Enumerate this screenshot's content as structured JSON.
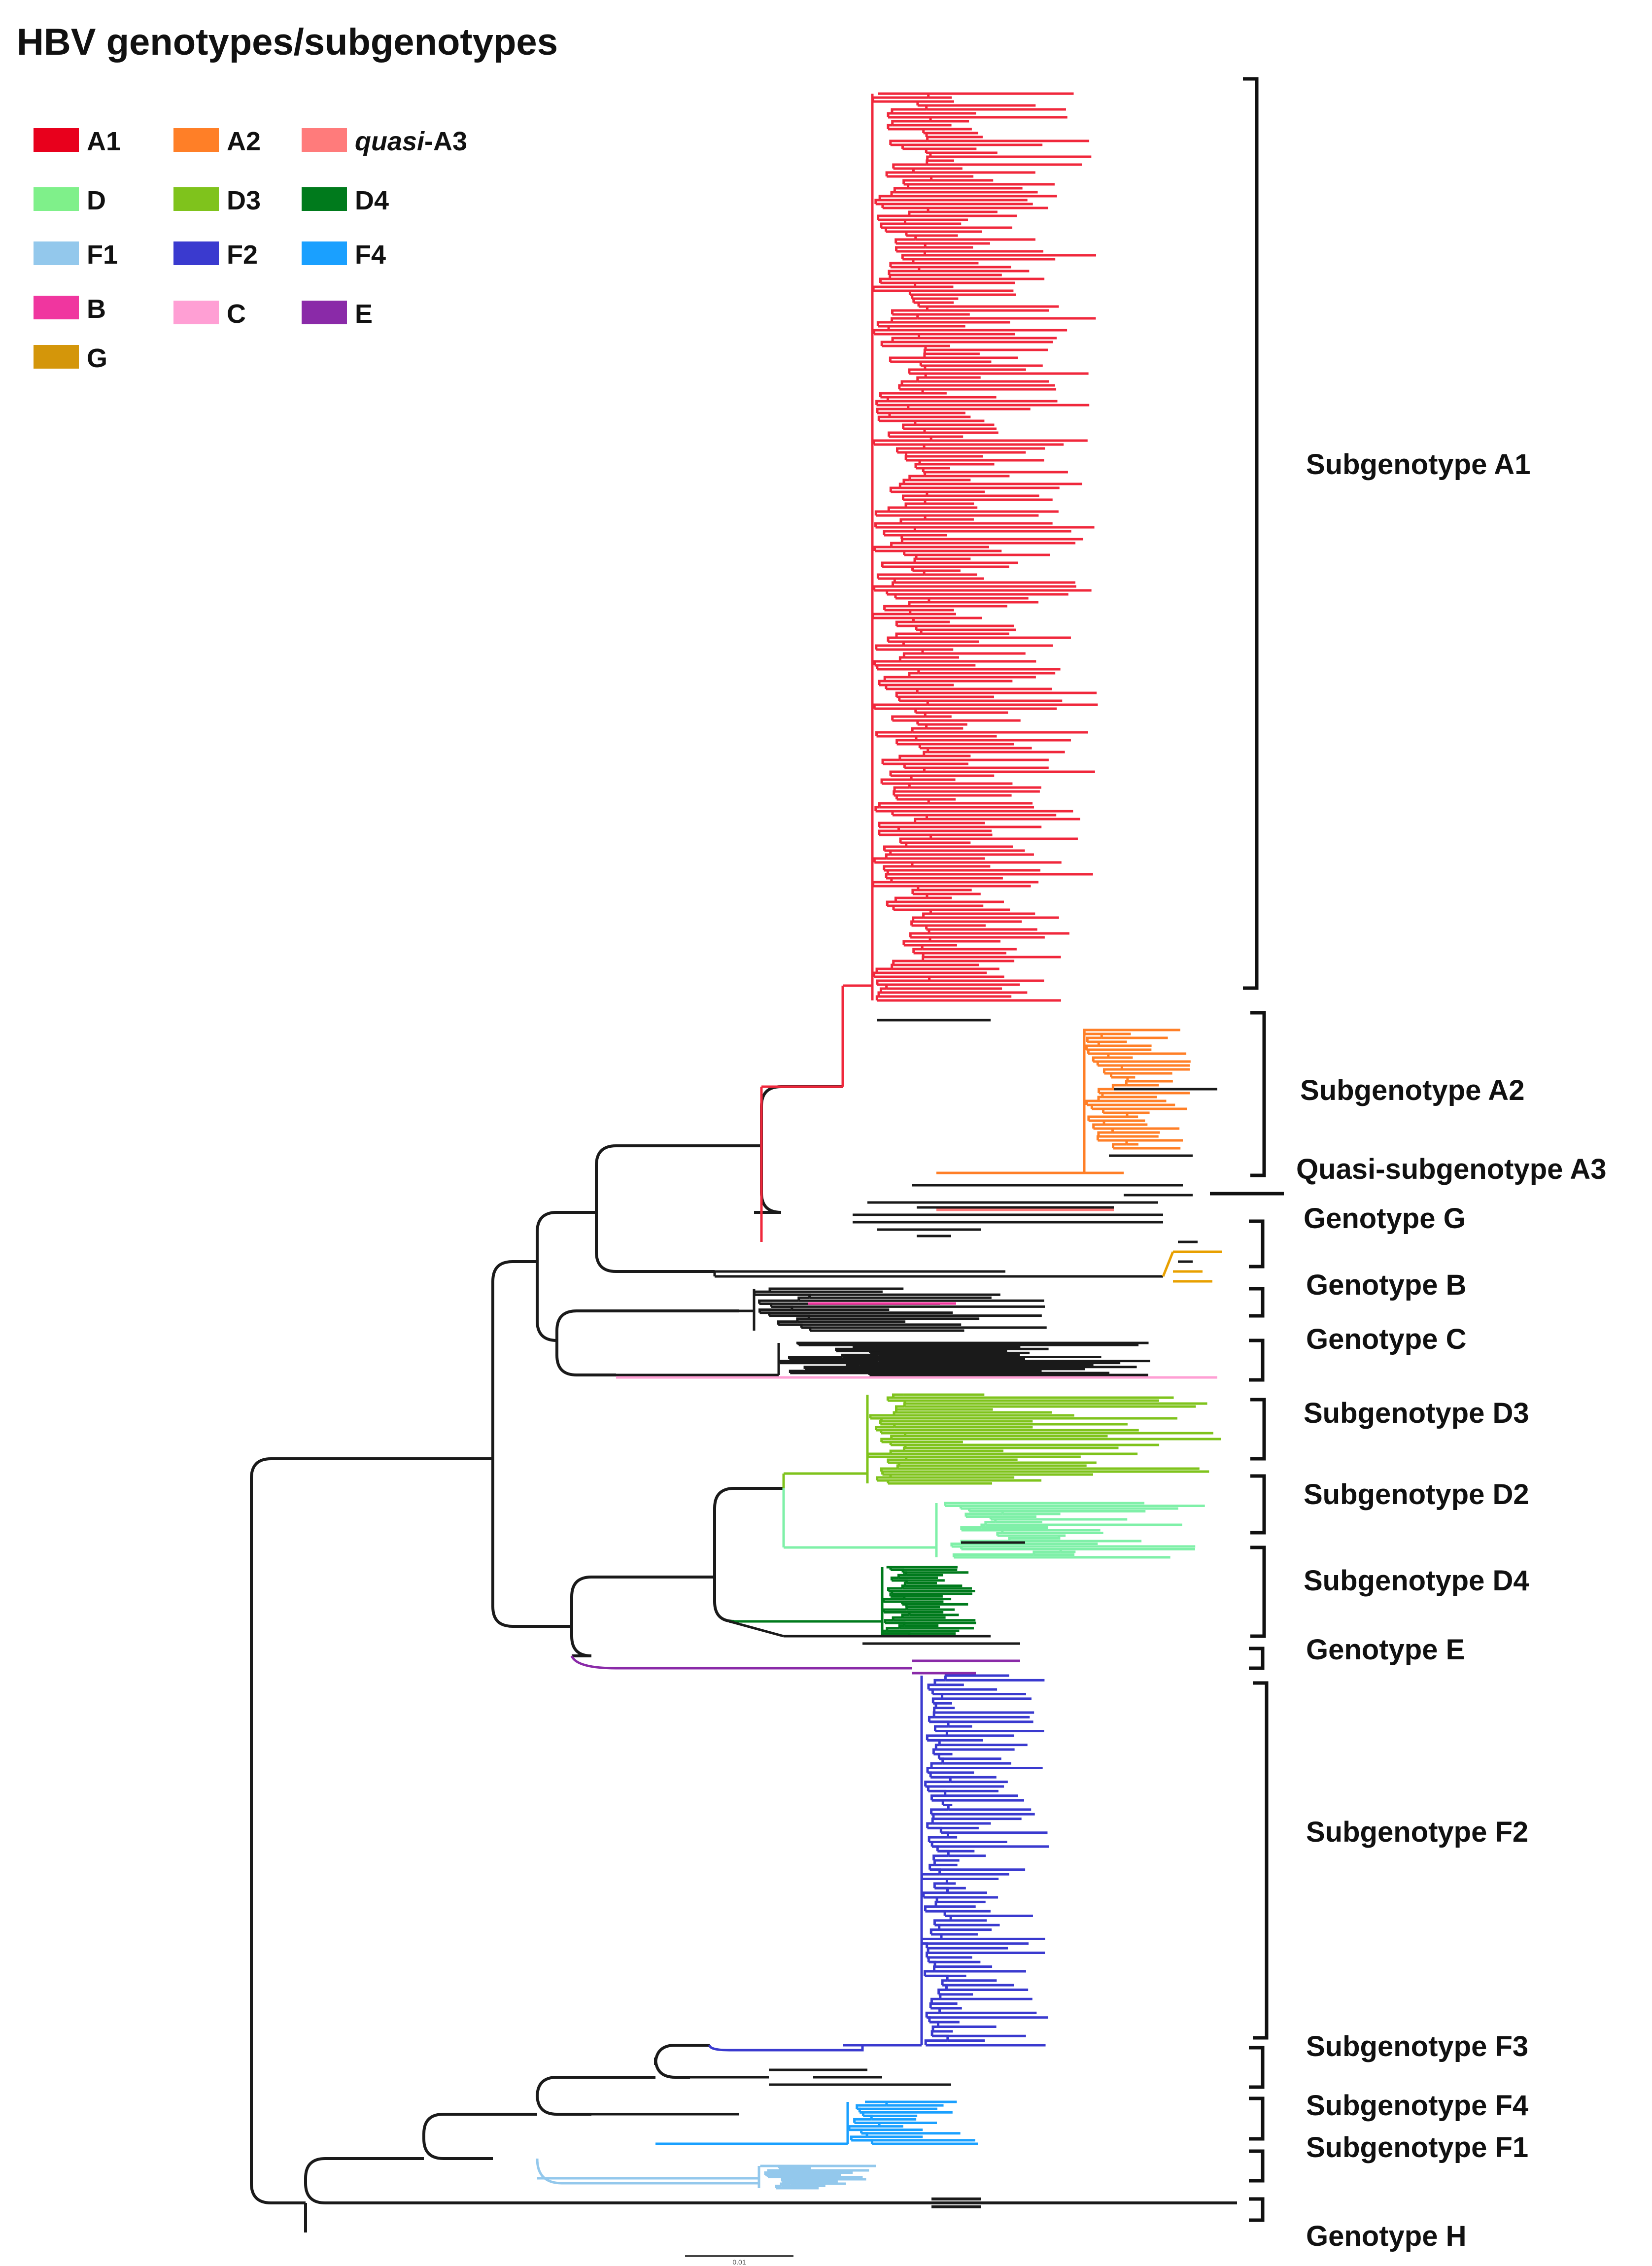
{
  "title": "HBV genotypes/subgenotypes",
  "legend": [
    {
      "key": "A1",
      "prefix": "",
      "suffix": "A1",
      "color": "#e8001c"
    },
    {
      "key": "A2",
      "prefix": "",
      "suffix": "A2",
      "color": "#ff7f27"
    },
    {
      "key": "qA3",
      "prefix": "quasi",
      "suffix": "-A3",
      "color": "#ff7b7b"
    },
    {
      "key": "D",
      "prefix": "",
      "suffix": "D",
      "color": "#7ff08a"
    },
    {
      "key": "D3",
      "prefix": "",
      "suffix": "D3",
      "color": "#7fc31c"
    },
    {
      "key": "D4",
      "prefix": "",
      "suffix": "D4",
      "color": "#007a1c"
    },
    {
      "key": "F1",
      "prefix": "",
      "suffix": "F1",
      "color": "#93c8ec"
    },
    {
      "key": "F2",
      "prefix": "",
      "suffix": "F2",
      "color": "#3a3acf"
    },
    {
      "key": "F4",
      "prefix": "",
      "suffix": "F4",
      "color": "#1aa0ff"
    },
    {
      "key": "B",
      "prefix": "",
      "suffix": "B",
      "color": "#f0369f"
    },
    {
      "key": "C",
      "prefix": "",
      "suffix": "C",
      "color": "#ff9fd4"
    },
    {
      "key": "E",
      "prefix": "",
      "suffix": "E",
      "color": "#8a2aa8"
    },
    {
      "key": "G",
      "prefix": "",
      "suffix": "G",
      "color": "#d4960a"
    }
  ],
  "clades": [
    {
      "label": "Subgenotype A1",
      "color": "#f0283c"
    },
    {
      "label": "Subgenotype A2",
      "color": "#ff7f27"
    },
    {
      "label": "Quasi-subgenotype A3",
      "color": "#ff7b7b"
    },
    {
      "label": "Genotype G",
      "color": "#e8a000"
    },
    {
      "label": "Genotype B",
      "color": "#f0369f"
    },
    {
      "label": "Genotype C",
      "color": "#ff9fd4"
    },
    {
      "label": "Subgenotype D3",
      "color": "#7fc31c"
    },
    {
      "label": "Subgenotype D2",
      "color": "#7ff0a8"
    },
    {
      "label": "Subgenotype D4",
      "color": "#007a1c"
    },
    {
      "label": "Genotype  E",
      "color": "#8a2aa8"
    },
    {
      "label": "Subgenotype F2",
      "color": "#3a3acf"
    },
    {
      "label": "Subgenotype  F3",
      "color": "#3a3acf"
    },
    {
      "label": "Subgenotype  F4",
      "color": "#1aa0ff"
    },
    {
      "label": "Subgenotype  F1",
      "color": "#93c8ec"
    },
    {
      "label": "Genotype H",
      "color": "#222222"
    }
  ],
  "scale_bar": {
    "label": "0.01"
  }
}
